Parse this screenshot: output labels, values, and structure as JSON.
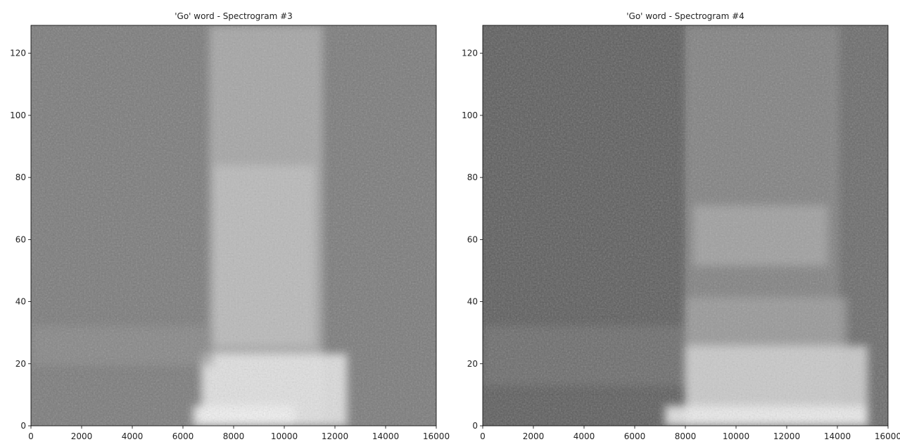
{
  "chart_data": [
    {
      "type": "heatmap",
      "title": "'Go' word - Spectrogram #3",
      "xlim": [
        0,
        16000
      ],
      "xticks": [
        0,
        2000,
        4000,
        6000,
        8000,
        10000,
        12000,
        14000,
        16000
      ],
      "ylim": [
        0,
        129
      ],
      "yticks": [
        0,
        20,
        40,
        60,
        80,
        100,
        120
      ]
    },
    {
      "type": "heatmap",
      "title": "'Go' word - Spectrogram #4",
      "xlim": [
        0,
        16000
      ],
      "xticks": [
        0,
        2000,
        4000,
        6000,
        8000,
        10000,
        12000,
        14000,
        16000
      ],
      "ylim": [
        0,
        129
      ],
      "yticks": [
        0,
        20,
        40,
        60,
        80,
        100,
        120
      ]
    }
  ]
}
